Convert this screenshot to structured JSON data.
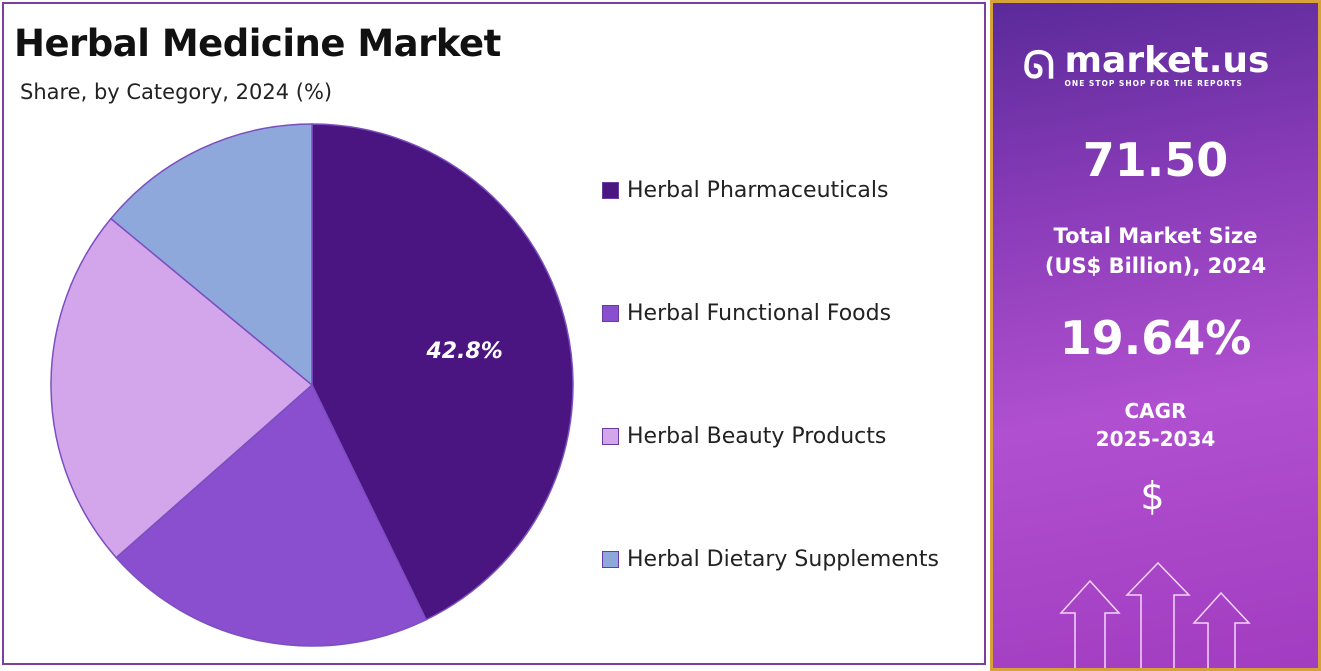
{
  "chart_data": {
    "type": "pie",
    "title": "Herbal Medicine Market",
    "subtitle": "Share, by Category, 2024 (%)",
    "categories": [
      "Herbal Pharmaceuticals",
      "Herbal Functional Foods",
      "Herbal Beauty Products",
      "Herbal Dietary Supplements"
    ],
    "values": [
      42.8,
      20.7,
      22.5,
      14.0
    ],
    "colors": [
      "#4a1580",
      "#8a4fcf",
      "#d3a6ec",
      "#8fa8dc"
    ],
    "data_labels": [
      "42.8%",
      "",
      "",
      ""
    ],
    "legend_position": "right"
  },
  "sidebar": {
    "brand": "market.us",
    "tagline": "ONE STOP SHOP FOR THE REPORTS",
    "market_size": "71.50",
    "market_size_label_1": "Total Market Size",
    "market_size_label_2": "(US$ Billion), 2024",
    "cagr": "19.64%",
    "cagr_label_1": "CAGR",
    "cagr_label_2": "2025-2034",
    "currency_symbol": "$",
    "border_color": "#d8a23a"
  }
}
